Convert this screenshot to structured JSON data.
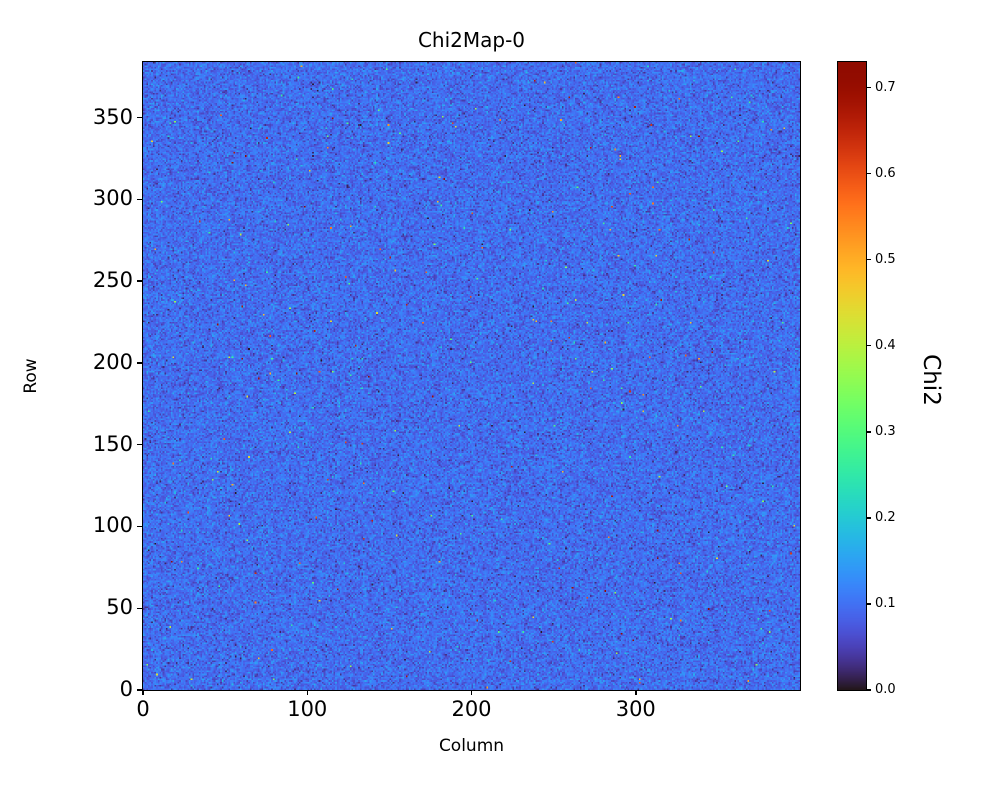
{
  "chart_data": {
    "type": "heatmap",
    "title": "Chi2Map-0",
    "xlabel": "Column",
    "ylabel": "Row",
    "x_range": [
      0,
      400
    ],
    "y_range": [
      0,
      384
    ],
    "xticks": [
      0,
      100,
      200,
      300
    ],
    "yticks": [
      0,
      50,
      100,
      150,
      200,
      250,
      300,
      350
    ],
    "grid": false,
    "colorbar": {
      "label": "Chi2",
      "ticks": [
        0.0,
        0.1,
        0.2,
        0.3,
        0.4,
        0.5,
        0.6,
        0.7
      ],
      "vmin": 0.0,
      "vmax": 0.73,
      "colormap": "turbo",
      "position": "right"
    },
    "noise_model": {
      "description": "Per-pixel chi2 values: dense gaussian noise around 0.095 (rendered royal blue) with sparse hot-pixel outliers up to ~0.73 (cyan/green/orange/red specks)",
      "base": 0.095,
      "sigma": 0.024,
      "outlier_fraction": 0.0028,
      "outlier_min": 0.14,
      "outlier_max": 0.728,
      "outlier_skew": 1.6,
      "seed": 42
    },
    "colors": {
      "background": "#ffffff",
      "spine": "#000000",
      "dominant_map_color": "#3b62c8"
    }
  }
}
